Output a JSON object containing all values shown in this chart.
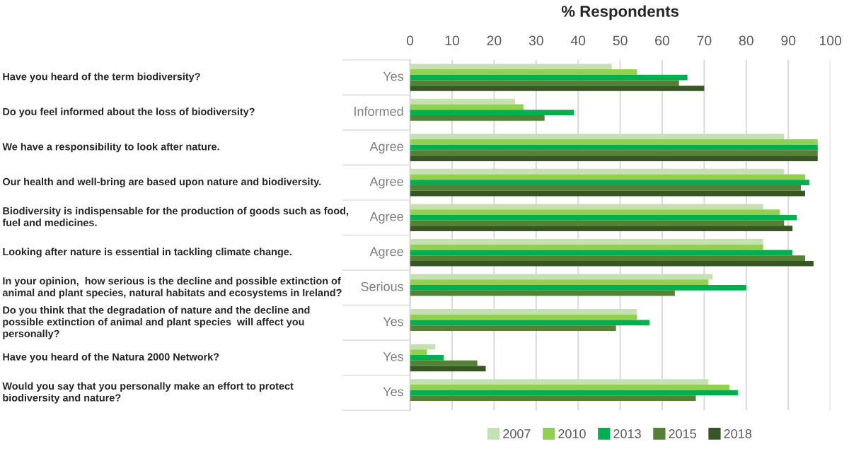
{
  "chart_data": {
    "type": "bar",
    "orientation": "horizontal",
    "title": "% Respondents",
    "categories": [
      "Have you heard of the term biodiversity?",
      "Do you feel informed about the loss of biodiversity?",
      "We have a responsibility to look after nature.",
      "Our health and well-bring are based upon nature and biodiversity.",
      "Biodiversity is indispensable for the production of goods such as food, fuel and medicines.",
      "Looking after nature is essential in tackling climate change.",
      "In your opinion,  how serious is the decline and possible extinction of animal and plant species, natural habitats and ecosystems in Ireland?",
      "Do you think that the degradation of nature and the decline and possible extinction of animal and plant species  will affect you personally?",
      "Have you heard of the Natura 2000 Network?",
      "Would you say that you personally make an effort to protect biodiversity and nature?"
    ],
    "series": [
      {
        "name": "2007",
        "color": "#c5e0b3",
        "values": [
          48,
          25,
          89,
          89,
          84,
          84,
          72,
          54,
          6,
          71
        ]
      },
      {
        "name": "2010",
        "color": "#92d050",
        "values": [
          54,
          27,
          97,
          94,
          88,
          84,
          71,
          54,
          4,
          76
        ]
      },
      {
        "name": "2013",
        "color": "#00b050",
        "values": [
          66,
          39,
          97,
          95,
          92,
          91,
          80,
          57,
          8,
          78
        ]
      },
      {
        "name": "2015",
        "color": "#548235",
        "values": [
          64,
          32,
          97,
          93,
          89,
          94,
          63,
          49,
          16,
          68
        ]
      },
      {
        "name": "2018",
        "color": "#375623",
        "values": [
          70,
          null,
          97,
          94,
          91,
          96,
          null,
          null,
          18,
          null
        ]
      }
    ],
    "annotations": [
      "Yes",
      "Informed",
      "Agree",
      "Agree",
      "Agree",
      "Agree",
      "Serious",
      "Yes",
      "Yes",
      "Yes"
    ],
    "xlim": [
      0,
      100
    ],
    "xticks": [
      0,
      10,
      20,
      30,
      40,
      50,
      60,
      70,
      80,
      90,
      100
    ],
    "grid": "x",
    "legend": "bottom"
  }
}
